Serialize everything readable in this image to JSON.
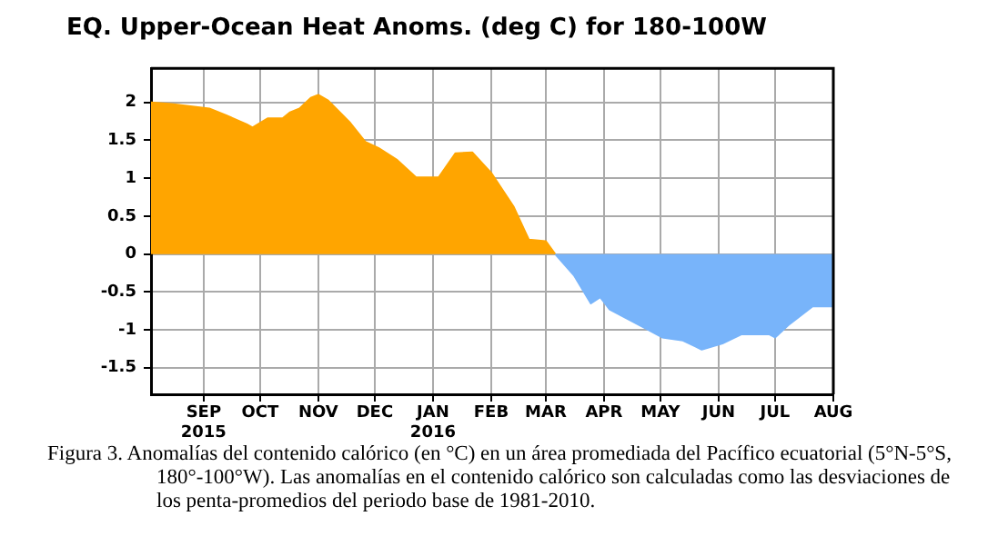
{
  "chart_data": {
    "type": "area",
    "title": "EQ. Upper-Ocean Heat Anoms. (deg C) for 180-100W",
    "annotations": [
      "Figura 3. Anomalías del contenido calórico (en °C) en un área promediada del Pacífico ecuatorial (5°N-5°S, 180°-100°W). Las anomalías en el contenido calórico son calculadas como las desviaciones de los penta-promedios del periodo base de 1981-2010."
    ],
    "series": [
      {
        "color": "#ffa500",
        "x": [
          "2015-08-04",
          "2015-08-15",
          "2015-09-04",
          "2015-09-13",
          "2015-09-24",
          "2015-09-27",
          "2015-10-05",
          "2015-10-13",
          "2015-10-17",
          "2015-10-22",
          "2015-10-28",
          "2015-11-01",
          "2015-11-06",
          "2015-11-18",
          "2015-11-26",
          "2015-12-03",
          "2015-12-13",
          "2015-12-23",
          "2016-01-04",
          "2016-01-13",
          "2016-01-22",
          "2016-02-01",
          "2016-02-13",
          "2016-02-21",
          "2016-03-01",
          "2016-03-06"
        ],
        "values": [
          2.0,
          1.98,
          1.92,
          1.83,
          1.71,
          1.67,
          1.79,
          1.79,
          1.87,
          1.92,
          2.06,
          2.1,
          2.03,
          1.73,
          1.48,
          1.4,
          1.24,
          1.01,
          1.01,
          1.33,
          1.34,
          1.07,
          0.62,
          0.19,
          0.17,
          0
        ]
      },
      {
        "color": "#78b4fa",
        "x": [
          "2016-03-06",
          "2016-03-16",
          "2016-03-25",
          "2016-03-30",
          "2016-04-04",
          "2016-04-23",
          "2016-05-02",
          "2016-05-13",
          "2016-05-23",
          "2016-06-03",
          "2016-06-13",
          "2016-06-28",
          "2016-07-01",
          "2016-07-08",
          "2016-07-21",
          "2016-08-01"
        ],
        "values": [
          0,
          -0.28,
          -0.65,
          -0.57,
          -0.73,
          -0.98,
          -1.1,
          -1.14,
          -1.26,
          -1.18,
          -1.06,
          -1.06,
          -1.1,
          -0.94,
          -0.69,
          -0.69
        ]
      }
    ],
    "xlim": [
      "2015-08-04",
      "2016-08-01"
    ],
    "xticks": [
      {
        "value": "2015-09-01",
        "label": "SEP\n2015"
      },
      {
        "value": "2015-10-01",
        "label": "OCT"
      },
      {
        "value": "2015-11-01",
        "label": "NOV"
      },
      {
        "value": "2015-12-01",
        "label": "DEC"
      },
      {
        "value": "2016-01-01",
        "label": "JAN\n2016"
      },
      {
        "value": "2016-02-01",
        "label": "FEB"
      },
      {
        "value": "2016-03-01",
        "label": "MAR"
      },
      {
        "value": "2016-04-01",
        "label": "APR"
      },
      {
        "value": "2016-05-01",
        "label": "MAY"
      },
      {
        "value": "2016-06-01",
        "label": "JUN"
      },
      {
        "value": "2016-07-01",
        "label": "JUL"
      },
      {
        "value": "2016-08-01",
        "label": "AUG"
      }
    ],
    "ylim": [
      -1.85,
      2.45
    ],
    "yticks": [
      -1.5,
      -1,
      -0.5,
      0,
      0.5,
      1,
      1.5,
      2
    ],
    "grid": true
  }
}
